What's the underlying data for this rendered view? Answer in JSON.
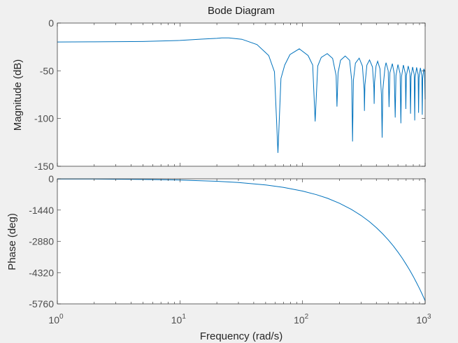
{
  "chart_data": [
    {
      "type": "line",
      "title": "Bode Diagram",
      "xlabel": "Frequency  (rad/s)",
      "ylabel": "Magnitude (dB)",
      "xscale": "log",
      "xlim": [
        1,
        1000
      ],
      "ylim": [
        -150,
        0
      ],
      "yticks": [
        0,
        -50,
        -100,
        -150
      ],
      "ytick_labels": [
        "0",
        "-50",
        "-100",
        "-150"
      ],
      "grid": false,
      "color": "#0072bd",
      "series": [
        {
          "name": "magnitude",
          "x": [
            1,
            2,
            5,
            10,
            15,
            20,
            22,
            25,
            32,
            42.5,
            53,
            59,
            63,
            66.7,
            71.6,
            79,
            94,
            111,
            121,
            126.8,
            133,
            142,
            159,
            176,
            188,
            191,
            195,
            204,
            223,
            242,
            252,
            256,
            260,
            270,
            290,
            308,
            318,
            320,
            323,
            335,
            352,
            372,
            382,
            384,
            387,
            398,
            410,
            428,
            440,
            446,
            452,
            470,
            480,
            500,
            508,
            516,
            540,
            560,
            570,
            578,
            600,
            625,
            634,
            642,
            665,
            690,
            696,
            703,
            728,
            752,
            760,
            768,
            790,
            815,
            822,
            830,
            852,
            877,
            884,
            892,
            914,
            940,
            947,
            955,
            975,
            990,
            1000
          ],
          "y": [
            -19.8,
            -19.7,
            -19.3,
            -18.2,
            -16.8,
            -16,
            -15.5,
            -15.6,
            -17,
            -22.5,
            -34,
            -51,
            -136,
            -58,
            -44,
            -33,
            -27,
            -34,
            -44,
            -103,
            -45,
            -36,
            -32,
            -37,
            -55,
            -87.5,
            -52,
            -39,
            -34.5,
            -39,
            -60,
            -124,
            -60,
            -42,
            -36.7,
            -45,
            -70,
            -92,
            -65,
            -44,
            -38.6,
            -46,
            -68,
            -84.6,
            -62,
            -45,
            -40,
            -48,
            -75,
            -120,
            -70,
            -47,
            -41.5,
            -50,
            -88,
            -52,
            -42.5,
            -53,
            -99,
            -55,
            -43.5,
            -53,
            -105,
            -56,
            -44,
            -53,
            -90,
            -55,
            -45,
            -53,
            -95,
            -56,
            -46,
            -54,
            -102,
            -57,
            -46.5,
            -54,
            -94,
            -57,
            -47,
            -55,
            -96,
            -58,
            -48,
            -50,
            -80
          ]
        }
      ]
    },
    {
      "type": "line",
      "xlabel": "Frequency  (rad/s)",
      "ylabel": "Phase (deg)",
      "xscale": "log",
      "xlim": [
        1,
        1000
      ],
      "ylim": [
        -5760,
        0
      ],
      "yticks": [
        0,
        -1440,
        -2880,
        -4320,
        -5760
      ],
      "ytick_labels": [
        "0",
        "-1440",
        "-2880",
        "-4320",
        "-5760"
      ],
      "xticks": [
        1,
        10,
        100,
        1000
      ],
      "xtick_labels": [
        {
          "base": "10",
          "exp": "0"
        },
        {
          "base": "10",
          "exp": "1"
        },
        {
          "base": "10",
          "exp": "2"
        },
        {
          "base": "10",
          "exp": "3"
        }
      ],
      "grid": false,
      "color": "#0072bd",
      "series": [
        {
          "name": "phase",
          "x": [
            1,
            2,
            5,
            10,
            20,
            30,
            50,
            70,
            100,
            130,
            160,
            200,
            250,
            300,
            350,
            400,
            450,
            500,
            550,
            600,
            650,
            700,
            750,
            800,
            850,
            900,
            950,
            1000
          ],
          "y": [
            -6,
            -11,
            -28,
            -56,
            -112,
            -169,
            -281,
            -393,
            -562,
            -731,
            -899,
            -1124,
            -1405,
            -1686,
            -1967,
            -2248,
            -2529,
            -2810,
            -3091,
            -3372,
            -3653,
            -3934,
            -4215,
            -4496,
            -4777,
            -5058,
            -5339,
            -5620
          ]
        }
      ]
    }
  ]
}
